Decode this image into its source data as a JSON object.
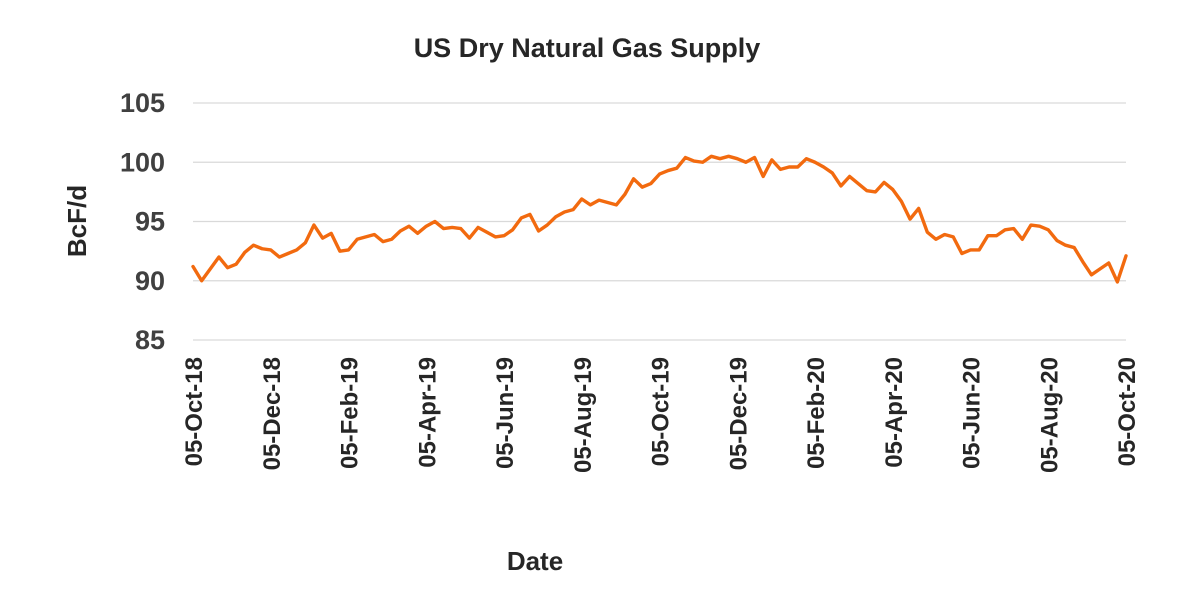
{
  "chart_data": {
    "type": "line",
    "title": "US Dry Natural Gas Supply",
    "xlabel": "Date",
    "ylabel": "BcF/d",
    "ylim": [
      85,
      105
    ],
    "yticks": [
      "85",
      "90",
      "95",
      "100",
      "105"
    ],
    "xtick_labels": [
      "05-Oct-18",
      "05-Dec-18",
      "05-Feb-19",
      "05-Apr-19",
      "05-Jun-19",
      "05-Aug-19",
      "05-Oct-19",
      "05-Dec-19",
      "05-Feb-20",
      "05-Apr-20",
      "05-Jun-20",
      "05-Aug-20",
      "05-Oct-20"
    ],
    "x_range": [
      "2018-10-05",
      "2020-10-30"
    ],
    "grid": true,
    "legend": "none",
    "series": [
      {
        "color": "#F26A0F",
        "x": [
          "2018-10-05",
          "2018-10-12",
          "2018-10-19",
          "2018-10-26",
          "2018-11-02",
          "2018-11-09",
          "2018-11-16",
          "2018-11-23",
          "2018-11-30",
          "2018-12-07",
          "2018-12-14",
          "2018-12-21",
          "2018-12-28",
          "2019-01-04",
          "2019-01-11",
          "2019-01-18",
          "2019-01-25",
          "2019-02-01",
          "2019-02-08",
          "2019-02-15",
          "2019-02-22",
          "2019-03-01",
          "2019-03-08",
          "2019-03-15",
          "2019-03-22",
          "2019-03-29",
          "2019-04-05",
          "2019-04-12",
          "2019-04-19",
          "2019-04-26",
          "2019-05-03",
          "2019-05-10",
          "2019-05-17",
          "2019-05-24",
          "2019-05-31",
          "2019-06-07",
          "2019-06-14",
          "2019-06-21",
          "2019-06-28",
          "2019-07-05",
          "2019-07-12",
          "2019-07-19",
          "2019-07-26",
          "2019-08-02",
          "2019-08-09",
          "2019-08-16",
          "2019-08-23",
          "2019-08-30",
          "2019-09-06",
          "2019-09-13",
          "2019-09-20",
          "2019-09-27",
          "2019-10-04",
          "2019-10-11",
          "2019-10-18",
          "2019-10-25",
          "2019-11-01",
          "2019-11-08",
          "2019-11-15",
          "2019-11-22",
          "2019-11-29",
          "2019-12-06",
          "2019-12-13",
          "2019-12-20",
          "2019-12-27",
          "2020-01-03",
          "2020-01-10",
          "2020-01-17",
          "2020-01-24",
          "2020-01-31",
          "2020-02-07",
          "2020-02-14",
          "2020-02-21",
          "2020-02-28",
          "2020-03-06",
          "2020-03-13",
          "2020-03-20",
          "2020-03-27",
          "2020-04-03",
          "2020-04-10",
          "2020-04-17",
          "2020-04-24",
          "2020-05-01",
          "2020-05-08",
          "2020-05-15",
          "2020-05-22",
          "2020-05-29",
          "2020-06-05",
          "2020-06-12",
          "2020-06-19",
          "2020-06-26",
          "2020-07-03",
          "2020-07-10",
          "2020-07-17",
          "2020-07-24",
          "2020-07-31",
          "2020-08-07",
          "2020-08-14",
          "2020-08-21",
          "2020-08-28",
          "2020-09-04",
          "2020-09-11",
          "2020-09-18",
          "2020-09-25",
          "2020-10-02",
          "2020-10-09",
          "2020-10-16",
          "2020-10-23",
          "2020-10-30"
        ],
        "values": [
          91.2,
          90.0,
          91.0,
          92.0,
          91.1,
          91.4,
          92.4,
          93.0,
          92.7,
          92.6,
          92.0,
          92.3,
          92.6,
          93.2,
          94.7,
          93.6,
          94.0,
          92.5,
          92.6,
          93.5,
          93.7,
          93.9,
          93.3,
          93.5,
          94.2,
          94.6,
          94.0,
          94.6,
          95.0,
          94.4,
          94.5,
          94.4,
          93.6,
          94.5,
          94.1,
          93.7,
          93.8,
          94.3,
          95.3,
          95.6,
          94.2,
          94.7,
          95.4,
          95.8,
          96.0,
          96.9,
          96.4,
          96.8,
          96.6,
          96.4,
          97.3,
          98.6,
          97.9,
          98.2,
          99.0,
          99.3,
          99.5,
          100.4,
          100.1,
          100.0,
          100.5,
          100.3,
          100.5,
          100.3,
          100.0,
          100.4,
          98.8,
          100.2,
          99.4,
          99.6,
          99.6,
          100.3,
          100.0,
          99.6,
          99.1,
          98.0,
          98.8,
          98.2,
          97.6,
          97.5,
          98.3,
          97.7,
          96.7,
          95.2,
          96.1,
          94.1,
          93.5,
          93.9,
          93.7,
          92.3,
          92.6,
          92.6,
          93.8,
          93.8,
          94.3,
          94.4,
          93.5,
          94.7,
          94.6,
          94.3,
          93.4,
          93.0,
          92.8,
          91.6,
          90.5,
          91.0,
          91.5,
          89.9,
          92.1
        ]
      }
    ]
  }
}
